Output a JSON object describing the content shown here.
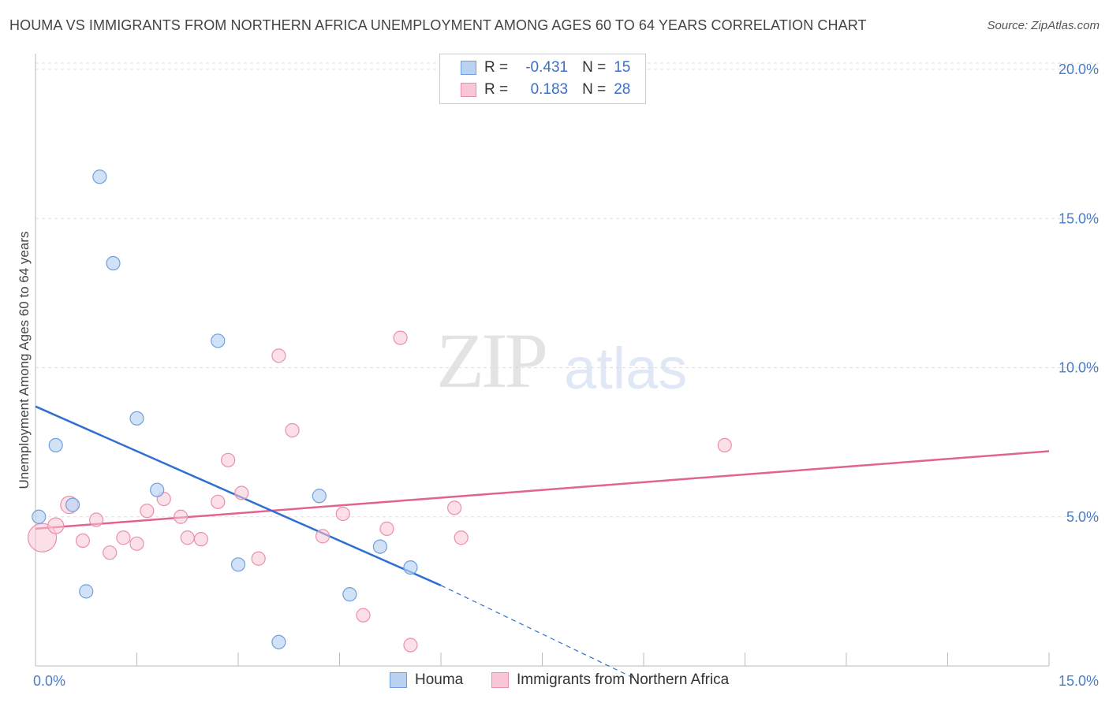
{
  "title": "HOUMA VS IMMIGRANTS FROM NORTHERN AFRICA UNEMPLOYMENT AMONG AGES 60 TO 64 YEARS CORRELATION CHART",
  "source": "Source: ZipAtlas.com",
  "watermark": {
    "zip": "ZIP",
    "atlas": "atlas"
  },
  "legend": {
    "rows": [
      {
        "r_label": "R =",
        "r_value": "-0.431",
        "n_label": "N =",
        "n_value": "15"
      },
      {
        "r_label": "R =",
        "r_value": "0.183",
        "n_label": "N =",
        "n_value": "28"
      }
    ]
  },
  "colors": {
    "houma_fill": "#b9d2f2",
    "houma_stroke": "#6f9fdc",
    "houma_line": "#2f6fcf",
    "imm_fill": "#f9c6d5",
    "imm_stroke": "#e890ab",
    "imm_line": "#e0648f",
    "tick_color": "#4a7cc7",
    "grid": "#dddddd"
  },
  "chart_data": {
    "type": "scatter",
    "title": "HOUMA VS IMMIGRANTS FROM NORTHERN AFRICA UNEMPLOYMENT AMONG AGES 60 TO 64 YEARS CORRELATION CHART",
    "xlabel": "",
    "ylabel": "Unemployment Among Ages 60 to 64 years",
    "xlim": [
      0,
      15
    ],
    "ylim": [
      0,
      20
    ],
    "x_tick_labels": [
      "0.0%",
      "15.0%"
    ],
    "y_ticks": [
      5,
      10,
      15,
      20
    ],
    "y_tick_labels": [
      "5.0%",
      "10.0%",
      "15.0%",
      "20.0%"
    ],
    "grid": true,
    "series": [
      {
        "name": "Houma",
        "points": [
          {
            "x": 0.05,
            "y": 5.0
          },
          {
            "x": 0.3,
            "y": 7.4
          },
          {
            "x": 0.55,
            "y": 5.4
          },
          {
            "x": 0.75,
            "y": 2.5
          },
          {
            "x": 0.95,
            "y": 16.4
          },
          {
            "x": 1.15,
            "y": 13.5
          },
          {
            "x": 1.5,
            "y": 8.3
          },
          {
            "x": 1.8,
            "y": 5.9
          },
          {
            "x": 2.7,
            "y": 10.9
          },
          {
            "x": 3.0,
            "y": 3.4
          },
          {
            "x": 3.6,
            "y": 0.8
          },
          {
            "x": 4.2,
            "y": 5.7
          },
          {
            "x": 4.65,
            "y": 2.4
          },
          {
            "x": 5.1,
            "y": 4.0
          },
          {
            "x": 5.55,
            "y": 3.3
          }
        ],
        "trend": {
          "x": [
            0,
            6.0
          ],
          "y": [
            8.7,
            2.7
          ]
        },
        "trend_extension": {
          "x": [
            6.0,
            8.85
          ],
          "y": [
            2.7,
            -0.4
          ]
        }
      },
      {
        "name": "Immigrants from Northern Africa",
        "points": [
          {
            "x": 0.1,
            "y": 4.3
          },
          {
            "x": 0.3,
            "y": 4.7
          },
          {
            "x": 0.5,
            "y": 5.4
          },
          {
            "x": 0.7,
            "y": 4.2
          },
          {
            "x": 0.9,
            "y": 4.9
          },
          {
            "x": 1.1,
            "y": 3.8
          },
          {
            "x": 1.3,
            "y": 4.3
          },
          {
            "x": 1.5,
            "y": 4.1
          },
          {
            "x": 1.65,
            "y": 5.2
          },
          {
            "x": 1.9,
            "y": 5.6
          },
          {
            "x": 2.15,
            "y": 5.0
          },
          {
            "x": 2.25,
            "y": 4.3
          },
          {
            "x": 2.45,
            "y": 4.25
          },
          {
            "x": 2.7,
            "y": 5.5
          },
          {
            "x": 2.85,
            "y": 6.9
          },
          {
            "x": 3.05,
            "y": 5.8
          },
          {
            "x": 3.3,
            "y": 3.6
          },
          {
            "x": 3.6,
            "y": 10.4
          },
          {
            "x": 3.8,
            "y": 7.9
          },
          {
            "x": 4.25,
            "y": 4.35
          },
          {
            "x": 4.55,
            "y": 5.1
          },
          {
            "x": 4.85,
            "y": 1.7
          },
          {
            "x": 5.2,
            "y": 4.6
          },
          {
            "x": 5.4,
            "y": 11.0
          },
          {
            "x": 5.55,
            "y": 0.7
          },
          {
            "x": 6.2,
            "y": 5.3
          },
          {
            "x": 6.3,
            "y": 4.3
          },
          {
            "x": 10.2,
            "y": 7.4
          }
        ],
        "trend": {
          "x": [
            0,
            15
          ],
          "y": [
            4.6,
            7.2
          ]
        }
      }
    ]
  },
  "bottom_legend": {
    "items": [
      {
        "label": "Houma"
      },
      {
        "label": "Immigrants from Northern Africa"
      }
    ]
  }
}
